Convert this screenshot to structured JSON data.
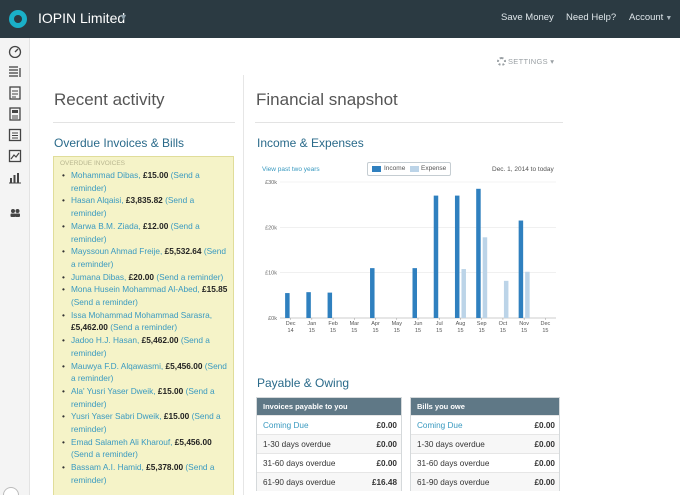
{
  "header": {
    "company": "IOPIN Limited",
    "nav": [
      {
        "label": "Save Money"
      },
      {
        "label": "Need Help?"
      },
      {
        "label": "Account"
      }
    ]
  },
  "settings_label": "SETTINGS",
  "recent": {
    "title": "Recent activity",
    "overdue_title": "Overdue Invoices & Bills",
    "overdue_label": "OVERDUE INVOICES",
    "items": [
      {
        "name": "Mohammad Dibas,",
        "amount": "£15.00",
        "action": "(Send a reminder)"
      },
      {
        "name": "Hasan Alqaisi,",
        "amount": "£3,835.82",
        "action": "(Send a reminder)"
      },
      {
        "name": "Marwa B.M. Ziada,",
        "amount": "£12.00",
        "action": "(Send a reminder)"
      },
      {
        "name": "Mayssoun Ahmad Freije,",
        "amount": "£5,532.64",
        "action": "(Send a reminder)"
      },
      {
        "name": "Jumana Dibas,",
        "amount": "£20.00",
        "action": "(Send a reminder)"
      },
      {
        "name": "Mona Husein Mohammad Al-Abed,",
        "amount": "£15.85",
        "action": "(Send a reminder)"
      },
      {
        "name": "Issa Mohammad Mohammad Sarasra,",
        "amount": "£5,462.00",
        "action": "(Send a reminder)"
      },
      {
        "name": "Jadoo H.J. Hasan,",
        "amount": "£5,462.00",
        "action": "(Send a reminder)"
      },
      {
        "name": "Mauwya F.D. Alqawasmi,",
        "amount": "£5,456.00",
        "action": "(Send a reminder)"
      },
      {
        "name": "Ala' Yusri Yaser Dweik,",
        "amount": "£15.00",
        "action": "(Send a reminder)"
      },
      {
        "name": "Yusri Yaser Sabri Dweik,",
        "amount": "£15.00",
        "action": "(Send a reminder)"
      },
      {
        "name": "Emad Salameh Ali Kharouf,",
        "amount": "£5,456.00",
        "action": "(Send a reminder)"
      },
      {
        "name": "Bassam A.I. Hamid,",
        "amount": "£5,378.00",
        "action": "(Send a reminder)"
      }
    ]
  },
  "snapshot": {
    "title": "Financial snapshot",
    "income_title": "Income & Expenses",
    "view_link": "View past two years",
    "date_range": "Dec. 1, 2014 to today",
    "payable_title": "Payable & Owing"
  },
  "chart_data": {
    "type": "bar",
    "categories": [
      "Dec 14",
      "Jan 15",
      "Feb 15",
      "Mar 15",
      "Apr 15",
      "May 15",
      "Jun 15",
      "Jul 15",
      "Aug 15",
      "Sep 15",
      "Oct 15",
      "Nov 15",
      "Dec 15"
    ],
    "tick_top": [
      "Dec",
      "Jan",
      "Feb",
      "Mar",
      "Apr",
      "May",
      "Jun",
      "Jul",
      "Aug",
      "Sep",
      "Oct",
      "Nov",
      "Dec"
    ],
    "tick_bottom": [
      "14",
      "15",
      "15",
      "15",
      "15",
      "15",
      "15",
      "15",
      "15",
      "15",
      "15",
      "15",
      "15"
    ],
    "series": [
      {
        "name": "Income",
        "color": "#2f80bf",
        "values": [
          5500,
          5700,
          5600,
          0,
          11000,
          0,
          11000,
          27000,
          27000,
          28500,
          0,
          21500,
          0
        ]
      },
      {
        "name": "Expense",
        "color": "#bcd4e8",
        "values": [
          0,
          0,
          0,
          0,
          0,
          0,
          0,
          0,
          10800,
          17800,
          8200,
          10200,
          0
        ]
      }
    ],
    "yticks": [
      0,
      10000,
      20000,
      30000
    ],
    "ytick_labels": [
      "£0k",
      "£10k",
      "£20k",
      "£30k"
    ],
    "ylim": [
      0,
      30000
    ],
    "legend": "top-center"
  },
  "payable": [
    {
      "title": "Invoices payable to you",
      "rows": [
        {
          "label": "Coming Due",
          "value": "£0.00",
          "link": true
        },
        {
          "label": "1-30 days overdue",
          "value": "£0.00",
          "link": false
        },
        {
          "label": "31-60 days overdue",
          "value": "£0.00",
          "link": false
        },
        {
          "label": "61-90 days overdue",
          "value": "£16.48",
          "link": false
        }
      ]
    },
    {
      "title": "Bills you owe",
      "rows": [
        {
          "label": "Coming Due",
          "value": "£0.00",
          "link": true
        },
        {
          "label": "1-30 days overdue",
          "value": "£0.00",
          "link": false
        },
        {
          "label": "31-60 days overdue",
          "value": "£0.00",
          "link": false
        },
        {
          "label": "61-90 days overdue",
          "value": "£0.00",
          "link": false
        }
      ]
    }
  ],
  "colors": {
    "topbar": "#2b3a42",
    "accent": "#3a9ac0",
    "income": "#2f80bf",
    "expense": "#bcd4e8",
    "overdue_bg": "#f5f3c8"
  }
}
